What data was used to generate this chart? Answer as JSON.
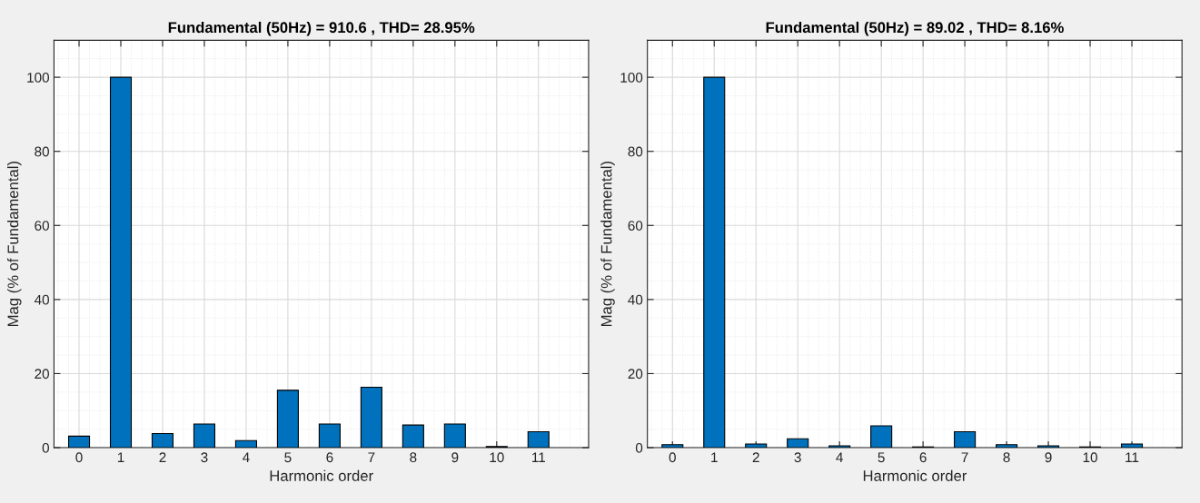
{
  "chart_data": [
    {
      "type": "bar",
      "title": "Fundamental (50Hz) = 910.6 , THD= 28.95%",
      "xlabel": "Harmonic order",
      "ylabel": "Mag (% of Fundamental)",
      "x": [
        0,
        1,
        2,
        3,
        4,
        5,
        6,
        7,
        8,
        9,
        10,
        11
      ],
      "values": [
        3.1,
        100,
        3.8,
        6.4,
        1.9,
        15.5,
        6.4,
        16.3,
        6.1,
        6.4,
        0.3,
        4.3
      ],
      "color": "#0072bd",
      "xlim": [
        -0.6,
        12.2
      ],
      "xticks": [
        0,
        1,
        2,
        3,
        4,
        5,
        6,
        7,
        8,
        9,
        10,
        11
      ],
      "ylim": [
        0,
        110
      ],
      "yticks": [
        0,
        20,
        40,
        60,
        80,
        100
      ],
      "grid": true
    },
    {
      "type": "bar",
      "title": "Fundamental (50Hz) = 89.02 , THD= 8.16%",
      "xlabel": "Harmonic order",
      "ylabel": "Mag (% of Fundamental)",
      "x": [
        0,
        1,
        2,
        3,
        4,
        5,
        6,
        7,
        8,
        9,
        10,
        11
      ],
      "values": [
        0.8,
        100,
        1.0,
        2.4,
        0.5,
        5.9,
        0.2,
        4.3,
        0.8,
        0.5,
        0.2,
        1.0
      ],
      "color": "#0072bd",
      "xlim": [
        -0.6,
        12.2
      ],
      "xticks": [
        0,
        1,
        2,
        3,
        4,
        5,
        6,
        7,
        8,
        9,
        10,
        11
      ],
      "ylim": [
        0,
        110
      ],
      "yticks": [
        0,
        20,
        40,
        60,
        80,
        100
      ],
      "grid": true
    }
  ]
}
